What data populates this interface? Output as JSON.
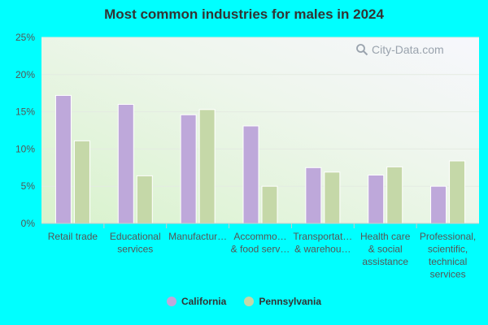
{
  "chart_data": {
    "type": "bar",
    "title": "Most common industries for males in 2024",
    "categories": [
      "Retail trade",
      "Educational services",
      "Manufactur…",
      "Accommo… & food serv…",
      "Transportat… & warehou…",
      "Health care & social assistance",
      "Professional, scientific, technical services"
    ],
    "category_lines": [
      [
        "Retail trade"
      ],
      [
        "Educational",
        "services"
      ],
      [
        "Manufactur…"
      ],
      [
        "Accommo…",
        "& food serv…"
      ],
      [
        "Transportat…",
        "& warehou…"
      ],
      [
        "Health care",
        "& social",
        "assistance"
      ],
      [
        "Professional,",
        "scientific,",
        "technical",
        "services"
      ]
    ],
    "series": [
      {
        "name": "California",
        "values": [
          17.2,
          16.0,
          14.6,
          13.1,
          7.5,
          6.5,
          5.0
        ]
      },
      {
        "name": "Pennsylvania",
        "values": [
          11.1,
          6.4,
          15.3,
          5.0,
          6.9,
          7.6,
          8.4
        ]
      }
    ],
    "ylim": [
      0,
      25
    ],
    "yticks": [
      0,
      5,
      10,
      15,
      20,
      25
    ],
    "ytick_labels": [
      "0%",
      "5%",
      "10%",
      "15%",
      "20%",
      "25%"
    ],
    "xlabel": "",
    "ylabel": "",
    "grid": true,
    "legend_position": "bottom",
    "colors": [
      "#BEA8DA",
      "#C5D8A8"
    ]
  },
  "watermark": {
    "text": "City-Data.com"
  }
}
